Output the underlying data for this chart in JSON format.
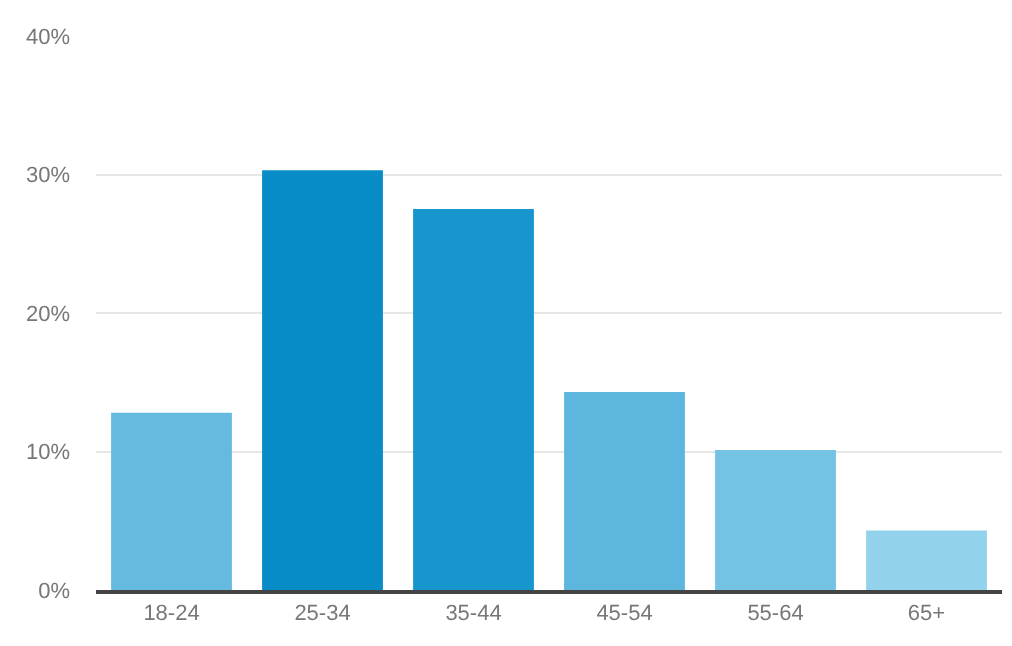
{
  "chart_data": {
    "type": "bar",
    "categories": [
      "18-24",
      "25-34",
      "35-44",
      "45-54",
      "55-64",
      "65+"
    ],
    "values": [
      12.8,
      30.3,
      27.5,
      14.3,
      10.1,
      4.3
    ],
    "colors": [
      "#65bae0",
      "#078cc7",
      "#1795cd",
      "#5cb6de",
      "#74c2e4",
      "#93d2ed"
    ],
    "ylim": [
      0,
      40
    ],
    "yticks": [
      {
        "value": 0,
        "label": "0%"
      },
      {
        "value": 10,
        "label": "10%"
      },
      {
        "value": 20,
        "label": "20%"
      },
      {
        "value": 30,
        "label": "30%"
      },
      {
        "value": 40,
        "label": "40%"
      }
    ],
    "grid": "y"
  }
}
